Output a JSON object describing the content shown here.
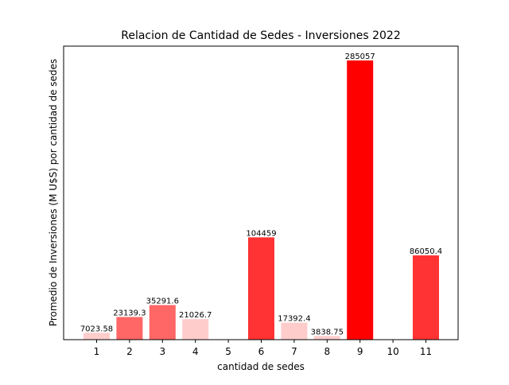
{
  "chart_data": {
    "type": "bar",
    "title": "Relacion de Cantidad de Sedes - Inversiones 2022",
    "xlabel": "cantidad de sedes",
    "ylabel": "Promedio de Inversiones (M U$S) por cantidad de sedes",
    "categories": [
      "1",
      "2",
      "3",
      "4",
      "5",
      "6",
      "7",
      "8",
      "9",
      "10",
      "11"
    ],
    "values": [
      7023.58,
      23139.3,
      35291.6,
      21026.7,
      null,
      104459,
      17392.4,
      3838.75,
      285057,
      null,
      86050.4
    ],
    "value_labels": [
      "7023.58",
      "23139.3",
      "35291.6",
      "21026.7",
      "",
      "104459",
      "17392.4",
      "3838.75",
      "285057",
      "",
      "86050.4"
    ],
    "bar_colors": [
      "#ffcccc",
      "#ff6666",
      "#ff6666",
      "#ffcccc",
      "",
      "#ff3333",
      "#ffcccc",
      "#ffcccc",
      "#ff0000",
      "",
      "#ff3333"
    ],
    "ylim": [
      0,
      285057
    ],
    "y_ticks_visible": false,
    "grid": false,
    "legend": "none"
  }
}
